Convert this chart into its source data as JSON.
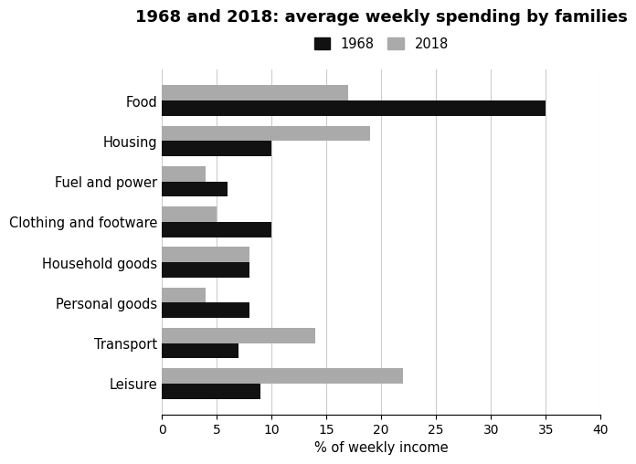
{
  "title": "1968 and 2018: average weekly spending by families",
  "categories": [
    "Food",
    "Housing",
    "Fuel and power",
    "Clothing and footware",
    "Household goods",
    "Personal goods",
    "Transport",
    "Leisure"
  ],
  "values_1968": [
    35,
    10,
    6,
    10,
    8,
    8,
    7,
    9
  ],
  "values_2018": [
    17,
    19,
    4,
    5,
    8,
    4,
    14,
    22
  ],
  "color_1968": "#111111",
  "color_2018": "#aaaaaa",
  "xlabel": "% of weekly income",
  "xlim": [
    0,
    40
  ],
  "xticks": [
    0,
    5,
    10,
    15,
    20,
    25,
    30,
    35,
    40
  ],
  "legend_labels": [
    "1968",
    "2018"
  ],
  "bar_height": 0.38,
  "title_fontsize": 13,
  "label_fontsize": 10.5,
  "tick_fontsize": 10
}
